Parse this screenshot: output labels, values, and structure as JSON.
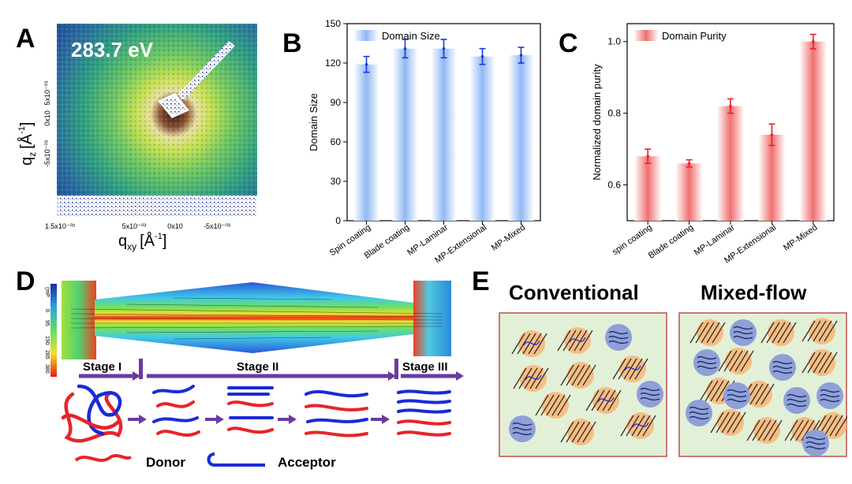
{
  "panels": {
    "A": "A",
    "B": "B",
    "C": "C",
    "D": "D",
    "E": "E"
  },
  "panelA": {
    "energy": "283.7 eV",
    "xlabel": "q",
    "xlabel_sub": "xy",
    "xlabel_unit": "[Å",
    "xlabel_sup": "-1",
    "xlabel_end": "]",
    "ylabel": "q",
    "ylabel_sub": "z",
    "ylabel_unit": "[Å",
    "ylabel_sup": "-1",
    "ylabel_end": "]",
    "xticks": [
      "1.5x10⁻⁰²",
      "5x10⁻⁰³",
      "0x10",
      "-5x10⁻⁰³"
    ],
    "yticks": [
      "5x10⁻⁰³",
      "0x10",
      "-5x10⁻⁰³"
    ]
  },
  "chart_data": [
    {
      "type": "bar",
      "legend": "Domain Size",
      "ylabel": "Domain Size",
      "categories": [
        "Spin coating",
        "Blade coating",
        "MP-Laminar",
        "MP-Extensional",
        "MP-Mixed"
      ],
      "values": [
        119,
        131,
        131,
        125,
        126
      ],
      "errors": [
        6,
        7,
        7,
        6,
        6
      ],
      "ylim": [
        0,
        150
      ],
      "yticks": [
        0,
        30,
        60,
        90,
        120,
        150
      ],
      "legend_position": "top-left",
      "color": "#8fb8f5"
    },
    {
      "type": "bar",
      "legend": "Domain Purity",
      "ylabel": "Normalized domain purity",
      "categories": [
        "spin coating",
        "Blade coating",
        "MP-Laminar",
        "MP-Extensional",
        "MP-Mixed"
      ],
      "values": [
        0.68,
        0.66,
        0.82,
        0.74,
        1.0
      ],
      "errors": [
        0.02,
        0.01,
        0.02,
        0.03,
        0.02
      ],
      "ylim": [
        0.5,
        1.05
      ],
      "yticks": [
        0.6,
        0.8,
        1.0
      ],
      "legend_position": "top-left",
      "color": "#f07070"
    }
  ],
  "panelD": {
    "colorbar_ticks": [
      "0",
      "95",
      "190",
      "285",
      "380"
    ],
    "colorbar_label": "(mP",
    "stages": [
      "Stage I",
      "Stage II",
      "Stage III"
    ],
    "legend_donor": "Donor",
    "legend_acceptor": "Acceptor"
  },
  "panelE": {
    "conventional": "Conventional",
    "mixed": "Mixed-flow"
  },
  "colors": {
    "donor": "#e8232a",
    "acceptor": "#1b2bd6",
    "stage_arrow": "#6a3aa0",
    "box_bg": "#e3f0d8",
    "box_border": "#c0504d",
    "orange": "#f4be86",
    "blue": "#8f9fd8"
  }
}
